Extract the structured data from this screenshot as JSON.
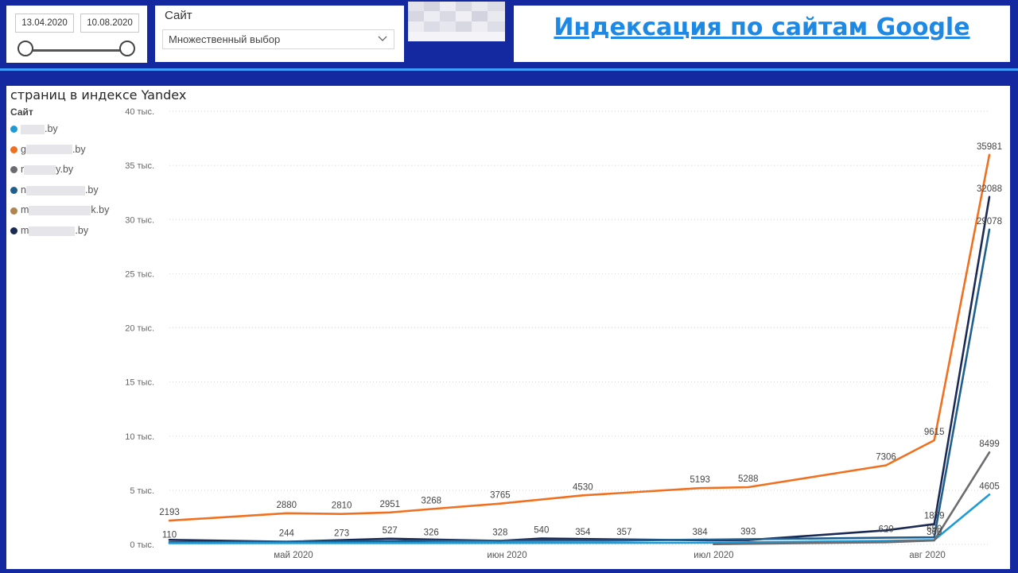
{
  "date_slicer": {
    "start_date": "13.04.2020",
    "end_date": "10.08.2020"
  },
  "site_slicer": {
    "title": "Сайт",
    "selected_value": "Множественный выбор"
  },
  "header_link": {
    "text": "Индексация по сайтам Google",
    "color": "#1e88e5"
  },
  "chart": {
    "title": "страниц в индексе Yandex",
    "legend_title": "Сайт",
    "legend": [
      {
        "prefix": "",
        "suffix": ".by",
        "color": "#1e9bd7"
      },
      {
        "prefix": "g",
        "suffix": ".by",
        "color": "#f07020"
      },
      {
        "prefix": "r",
        "suffix": "y.by",
        "color": "#6b6b70"
      },
      {
        "prefix": "n",
        "suffix": ".by",
        "color": "#1f5f8f"
      },
      {
        "prefix": "m",
        "suffix": "k.by",
        "color": "#b08550"
      },
      {
        "prefix": "m",
        "suffix": ".by",
        "color": "#1b2a55"
      }
    ]
  },
  "chart_data": {
    "type": "line",
    "title": "страниц в индексе Yandex",
    "legend_title": "Сайт",
    "legend_position": "left",
    "grid": true,
    "ylim": [
      0,
      40000
    ],
    "y_ticks": [
      0,
      5000,
      10000,
      15000,
      20000,
      25000,
      30000,
      35000,
      40000
    ],
    "y_tick_labels": [
      "0 тыс.",
      "5 тыс.",
      "10 тыс.",
      "15 тыс.",
      "20 тыс.",
      "25 тыс.",
      "30 тыс.",
      "35 тыс.",
      "40 тыс."
    ],
    "x_range": [
      "2020-04-13",
      "2020-08-10"
    ],
    "x_ticks": [
      {
        "date": "2020-05-01",
        "label": "май 2020"
      },
      {
        "date": "2020-06-01",
        "label": "июн 2020"
      },
      {
        "date": "2020-07-01",
        "label": "июл 2020"
      },
      {
        "date": "2020-08-01",
        "label": "авг 2020"
      }
    ],
    "series": [
      {
        "color": "#f07020",
        "points": [
          {
            "x": "2020-04-13",
            "y": 2193,
            "label": "2193"
          },
          {
            "x": "2020-04-30",
            "y": 2880,
            "label": "2880"
          },
          {
            "x": "2020-05-08",
            "y": 2810,
            "label": "2810"
          },
          {
            "x": "2020-05-15",
            "y": 2951,
            "label": "2951"
          },
          {
            "x": "2020-05-21",
            "y": 3268,
            "label": "3268"
          },
          {
            "x": "2020-05-31",
            "y": 3765,
            "label": "3765"
          },
          {
            "x": "2020-06-12",
            "y": 4530,
            "label": "4530"
          },
          {
            "x": "2020-06-29",
            "y": 5193,
            "label": "5193"
          },
          {
            "x": "2020-07-06",
            "y": 5288,
            "label": "5288"
          },
          {
            "x": "2020-07-26",
            "y": 7306,
            "label": "7306"
          },
          {
            "x": "2020-08-02",
            "y": 9615,
            "label": "9615"
          },
          {
            "x": "2020-08-10",
            "y": 35981,
            "label": "35981"
          }
        ]
      },
      {
        "color": "#1b2a55",
        "points": [
          {
            "x": "2020-04-13",
            "y": 420
          },
          {
            "x": "2020-04-30",
            "y": 244,
            "label": "244"
          },
          {
            "x": "2020-05-15",
            "y": 527,
            "label": "527"
          },
          {
            "x": "2020-05-31",
            "y": 328,
            "label": "328"
          },
          {
            "x": "2020-06-06",
            "y": 540,
            "label": "540"
          },
          {
            "x": "2020-06-29",
            "y": 384,
            "label": "384"
          },
          {
            "x": "2020-07-06",
            "y": 393,
            "label": "393"
          },
          {
            "x": "2020-07-26",
            "y": 1300
          },
          {
            "x": "2020-08-02",
            "y": 1879,
            "label": "1879"
          },
          {
            "x": "2020-08-10",
            "y": 32088,
            "label": "32088"
          }
        ]
      },
      {
        "color": "#1f5f8f",
        "points": [
          {
            "x": "2020-04-13",
            "y": 200
          },
          {
            "x": "2020-05-08",
            "y": 273,
            "label": "273"
          },
          {
            "x": "2020-05-21",
            "y": 326,
            "label": "326"
          },
          {
            "x": "2020-06-12",
            "y": 354,
            "label": "354"
          },
          {
            "x": "2020-06-18",
            "y": 357,
            "label": "357"
          },
          {
            "x": "2020-07-26",
            "y": 620,
            "label": "620"
          },
          {
            "x": "2020-08-02",
            "y": 650,
            "label": "650"
          },
          {
            "x": "2020-08-10",
            "y": 29078,
            "label": "29078"
          }
        ]
      },
      {
        "color": "#1e9bd7",
        "points": [
          {
            "x": "2020-04-13",
            "y": 110,
            "label": "110"
          },
          {
            "x": "2020-06-29",
            "y": 150
          },
          {
            "x": "2020-07-26",
            "y": 320
          },
          {
            "x": "2020-08-02",
            "y": 400
          },
          {
            "x": "2020-08-10",
            "y": 4605,
            "label": "4605"
          }
        ]
      },
      {
        "color": "#6b6b70",
        "points": [
          {
            "x": "2020-07-01",
            "y": 20
          },
          {
            "x": "2020-07-26",
            "y": 200
          },
          {
            "x": "2020-08-02",
            "y": 360,
            "label": "360"
          },
          {
            "x": "2020-08-10",
            "y": 8499,
            "label": "8499"
          }
        ]
      }
    ]
  }
}
